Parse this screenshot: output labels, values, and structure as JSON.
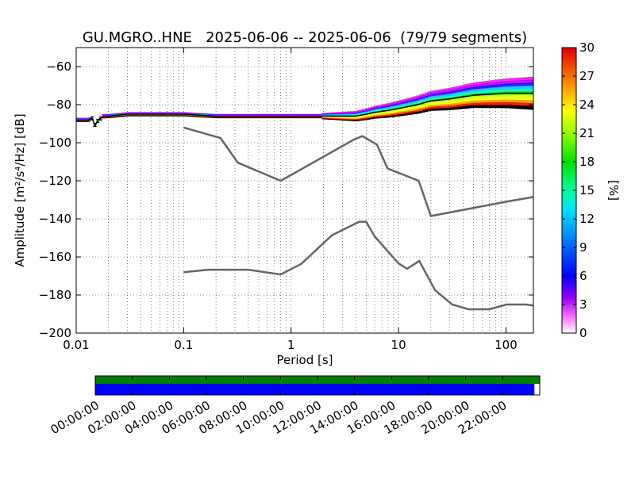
{
  "chart_data": {
    "type": "heatmap",
    "title": "GU.MGRO..HNE   2025-06-06 -- 2025-06-06  (79/79 segments)",
    "xlabel": "Period [s]",
    "ylabel": "Amplitude [m²/s⁴/Hz] [dB]",
    "x_scale": "log",
    "xlim": [
      0.01,
      180
    ],
    "ylim": [
      -200,
      -50
    ],
    "x_ticks": [
      {
        "value": 0.01,
        "label": "0.01"
      },
      {
        "value": 0.1,
        "label": "0.1"
      },
      {
        "value": 1,
        "label": "1"
      },
      {
        "value": 10,
        "label": "10"
      },
      {
        "value": 100,
        "label": "100"
      }
    ],
    "y_ticks": [
      {
        "value": -60,
        "label": "−60"
      },
      {
        "value": -80,
        "label": "−80"
      },
      {
        "value": -100,
        "label": "−100"
      },
      {
        "value": -120,
        "label": "−120"
      },
      {
        "value": -140,
        "label": "−140"
      },
      {
        "value": -160,
        "label": "−160"
      },
      {
        "value": -180,
        "label": "−180"
      },
      {
        "value": -200,
        "label": "−200"
      }
    ],
    "grid": true,
    "colorbar": {
      "label": "[%]",
      "range": [
        0,
        30
      ],
      "ticks": [
        0,
        3,
        6,
        9,
        12,
        15,
        18,
        21,
        24,
        27,
        30
      ]
    },
    "psd_mode_curve": {
      "x": [
        0.01,
        0.013,
        0.014,
        0.015,
        0.016,
        0.018,
        0.02,
        0.03,
        0.05,
        0.1,
        0.2,
        0.5,
        1,
        2,
        3,
        4,
        5,
        6,
        8,
        10,
        15,
        20,
        30,
        50,
        100,
        180
      ],
      "y": [
        -88,
        -88,
        -87,
        -91,
        -88,
        -86,
        -86,
        -85,
        -85,
        -85,
        -86,
        -86,
        -86,
        -86,
        -86,
        -86,
        -85,
        -84,
        -83,
        -82,
        -80,
        -78,
        -77,
        -75,
        -74,
        -74
      ]
    },
    "noise_models": [
      {
        "x": [
          0.1,
          0.22,
          0.32,
          0.8,
          3.8,
          4.6,
          6.3,
          7.9,
          15.4,
          20,
          100,
          180
        ],
        "y": [
          -92,
          -97.5,
          -110.5,
          -120,
          -98.5,
          -96.5,
          -101,
          -113.5,
          -120,
          -138.5,
          -131,
          -128.5
        ]
      },
      {
        "x": [
          0.1,
          0.17,
          0.4,
          0.8,
          1.24,
          2.4,
          4.3,
          5.0,
          6.0,
          10,
          12,
          15.6,
          21.9,
          31.6,
          45,
          70,
          101,
          154,
          180
        ],
        "y": [
          -168,
          -166.7,
          -166.7,
          -169.2,
          -163.7,
          -148.6,
          -141.5,
          -141.5,
          -149.2,
          -163.4,
          -166.2,
          -162.1,
          -177.5,
          -185,
          -187.5,
          -187.5,
          -185,
          -185,
          -185.5
        ]
      }
    ],
    "timeline": {
      "ticks": [
        "00:00:00",
        "02:00:00",
        "04:00:00",
        "06:00:00",
        "08:00:00",
        "10:00:00",
        "12:00:00",
        "14:00:00",
        "16:00:00",
        "18:00:00",
        "20:00:00",
        "22:00:00"
      ],
      "data_coverage_end_fraction": 0.988,
      "colors": {
        "gaps": "#008000",
        "data": "#0000ff"
      }
    }
  }
}
